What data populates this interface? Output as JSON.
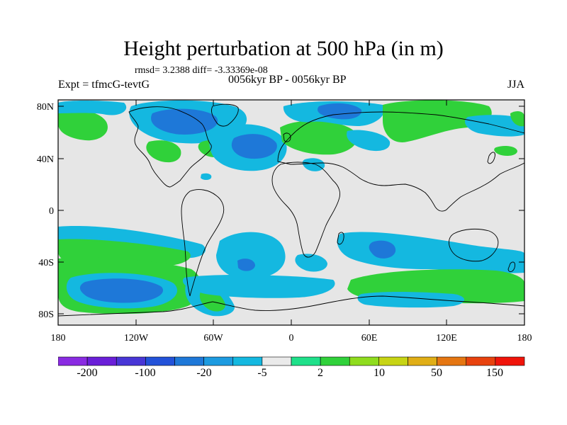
{
  "title": "Height perturbation at 500 hPa (in m)",
  "stats": "rmsd= 3.2388 diff= -3.33369e-08",
  "left_label": "Expt = tfmcG-tevtG",
  "period": "0056kyr BP - 0056kyr BP",
  "season": "JJA",
  "lat_ticks": [
    "80N",
    "40N",
    "0",
    "40S",
    "80S"
  ],
  "lon_ticks": [
    "180",
    "120W",
    "60W",
    "0",
    "60E",
    "120E",
    "180"
  ],
  "colorbar": {
    "colors": [
      "#8a2be2",
      "#6a1fd8",
      "#4836d6",
      "#2352d9",
      "#1e78d8",
      "#1d9be0",
      "#14b8e0",
      "#eaeaea",
      "#1fe08a",
      "#30d13a",
      "#8fdc1e",
      "#c7d414",
      "#e0ae16",
      "#e57612",
      "#e8420e",
      "#f0140a"
    ],
    "labels": [
      "-200",
      "-100",
      "-20",
      "-5",
      "2",
      "10",
      "50",
      "150"
    ]
  }
}
